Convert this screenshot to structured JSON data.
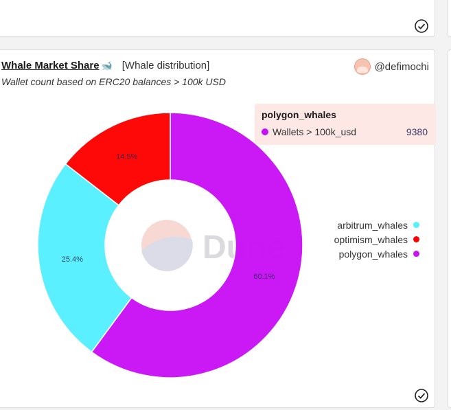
{
  "card": {
    "title": "Whale Market Share",
    "tag": "[Whale distribution]",
    "subtitle": "Wallet count based on ERC20 balances > 100k USD",
    "author": "@defimochi"
  },
  "tooltip": {
    "series": "polygon_whales",
    "metric": "Wallets > 100k_usd",
    "value": "9380",
    "color": "#c812f4"
  },
  "watermark": "Dune",
  "chart_data": {
    "type": "pie",
    "donut": true,
    "categories": [
      "arbitrum_whales",
      "optimism_whales",
      "polygon_whales"
    ],
    "values": [
      25.4,
      14.5,
      60.1
    ],
    "labels": [
      "25.4%",
      "14.5%",
      "60.1%"
    ],
    "colors": [
      "#55f0ff",
      "#ff0000",
      "#c812f4"
    ],
    "legend_position": "right",
    "hovered": {
      "category": "polygon_whales",
      "metric": "Wallets > 100k_usd",
      "value": 9380
    }
  }
}
